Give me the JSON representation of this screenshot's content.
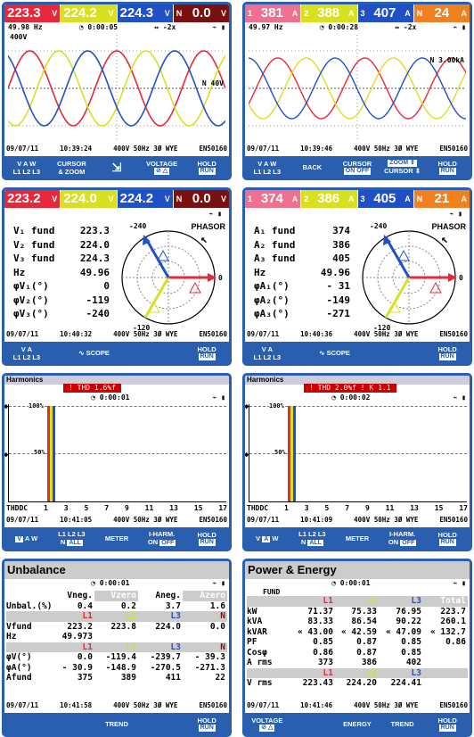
{
  "colors": {
    "l1": "#e8283a",
    "l2": "#d8e020",
    "l3": "#2050c8",
    "n": "#7a1010",
    "blue": "#2a5fb0",
    "pinkbadge": "#f07090",
    "green": "#1a8a1a"
  },
  "p1": {
    "badges": [
      {
        "value": "223.3",
        "unit": "V"
      },
      {
        "value": "224.2",
        "unit": "V"
      },
      {
        "value": "224.3",
        "unit": "V"
      },
      {
        "value": "0.0",
        "unit": "V"
      }
    ],
    "freq": "49.98 Hz",
    "time": "0:00:05",
    "zoom": "-2x",
    "scale_top": "400V",
    "marker": "N  40V",
    "date": "09/07/11",
    "clock": "10:39:24",
    "cfg": "400V  50Hz 3Ø WYE",
    "std": "EN50160",
    "fkeys": [
      "V  A  W\nL1 L2 L3",
      "CURSOR\n& ZOOM",
      "⇄",
      "VOLTAGE",
      "HOLD\nRUN"
    ],
    "tabs": {
      "voltage": "⊘  △",
      "hold": "RUN"
    }
  },
  "p2": {
    "badges": [
      {
        "value": "381",
        "unit": "A"
      },
      {
        "value": "388",
        "unit": "A"
      },
      {
        "value": "407",
        "unit": "A"
      },
      {
        "value": "24",
        "unit": "A"
      }
    ],
    "freq": "49.97 Hz",
    "time": "0:00:28",
    "zoom": "-2x",
    "marker": "N  3.00kA",
    "date": "09/07/11",
    "clock": "10:39:46",
    "cfg": "400V  50Hz 3Ø WYE",
    "std": "EN50160",
    "fkeys": [
      "V  A  W\nL1 L2 L3",
      "BACK",
      "CURSOR\nON OFF",
      "ZOOM ⇕\nCURSOR ⇕",
      "HOLD\nRUN"
    ]
  },
  "p3": {
    "badges": [
      {
        "value": "223.2",
        "unit": "V"
      },
      {
        "value": "224.0",
        "unit": "V"
      },
      {
        "value": "224.2",
        "unit": "V"
      },
      {
        "value": "0.0",
        "unit": "V"
      }
    ],
    "mode": "PHASOR",
    "rows": [
      {
        "label": "V₁ fund",
        "value": "223.3"
      },
      {
        "label": "V₂ fund",
        "value": "224.0"
      },
      {
        "label": "V₃ fund",
        "value": "224.3"
      },
      {
        "label": "Hz",
        "value": "49.96"
      },
      {
        "label": "φV₁(°)",
        "value": "0"
      },
      {
        "label": "φV₂(°)",
        "value": "-119"
      },
      {
        "label": "φV₃(°)",
        "value": "-240"
      }
    ],
    "axis": {
      "top": "-240",
      "right": "0",
      "bottom": "-120"
    },
    "date": "09/07/11",
    "clock": "10:40:32",
    "cfg": "400V  50Hz 3Ø WYE",
    "std": "EN50160",
    "fkeys": [
      "V  A\nL1 L2 L3",
      "SCOPE",
      "HOLD\nRUN"
    ]
  },
  "p4": {
    "badges": [
      {
        "value": "374",
        "unit": "A"
      },
      {
        "value": "386",
        "unit": "A"
      },
      {
        "value": "405",
        "unit": "A"
      },
      {
        "value": "21",
        "unit": "A"
      }
    ],
    "mode": "PHASOR",
    "rows": [
      {
        "label": "A₁ fund",
        "value": "374"
      },
      {
        "label": "A₂ fund",
        "value": "386"
      },
      {
        "label": "A₃ fund",
        "value": "405"
      },
      {
        "label": "Hz",
        "value": "49.96"
      },
      {
        "label": "φA₁(°)",
        "value": "- 31"
      },
      {
        "label": "φA₂(°)",
        "value": "-149"
      },
      {
        "label": "φA₃(°)",
        "value": "-271"
      }
    ],
    "axis": {
      "top": "-240",
      "right": "0",
      "bottom": "-120"
    },
    "date": "09/07/11",
    "clock": "10:40:36",
    "cfg": "400V  50Hz 3Ø WYE",
    "std": "EN50160",
    "fkeys": [
      "V  A\nL1 L2 L3",
      "SCOPE",
      "HOLD\nRUN"
    ]
  },
  "p5": {
    "title": "Harmonics",
    "thd": "! THD  1.6%f",
    "time": "0:00:01",
    "y100": "100%",
    "y50": "50%",
    "xlabels": [
      "THDDC",
      "1",
      "3",
      "5",
      "7",
      "9",
      "11",
      "13",
      "15",
      "17"
    ],
    "date": "09/07/11",
    "clock": "10:41:05",
    "cfg": "400V  50Hz 3Ø WYE",
    "std": "EN50160",
    "fkeys": [
      "V  A  W",
      "L1 L2 L3\nN  ALL",
      "METER",
      "I-HARM.\nON  OFF",
      "HOLD\nRUN"
    ]
  },
  "p6": {
    "title": "Harmonics",
    "thd": "! THD  2.0%f ! K     1.1",
    "time": "0:00:02",
    "y100": "100%",
    "y50": "50%",
    "xlabels": [
      "THDDC",
      "1",
      "3",
      "5",
      "7",
      "9",
      "11",
      "13",
      "15",
      "17"
    ],
    "date": "09/07/11",
    "clock": "10:41:09",
    "cfg": "400V  50Hz 3Ø WYE",
    "std": "EN50160",
    "fkeys": [
      "V  A  W",
      "L1 L2 L3\nN  ALL",
      "METER",
      "I-HARM.\nON  OFF",
      "HOLD\nRUN"
    ]
  },
  "p7": {
    "title": "Unbalance",
    "time": "0:00:01",
    "hdr": [
      "",
      "Vneg.",
      "Vzero",
      "Aneg.",
      "Azero"
    ],
    "unbal": [
      "Unbal.(%)",
      "0.4",
      "0.2",
      "3.7",
      "1.6"
    ],
    "h2": [
      "",
      "L1",
      "L2",
      "L3",
      "N"
    ],
    "vfund": [
      "Vfund",
      "223.2",
      "223.8",
      "224.0",
      "0.0"
    ],
    "hz": [
      "Hz",
      "49.973",
      "",
      "",
      ""
    ],
    "h3": [
      "",
      "L1",
      "L2",
      "L3",
      "N"
    ],
    "phv": [
      "φV(°)",
      "0.0",
      "-119.4",
      "-239.7",
      "- 39.3"
    ],
    "pha": [
      "φA(°)",
      "- 30.9",
      "-148.9",
      "-270.5",
      "-271.3"
    ],
    "afund": [
      "Afund",
      "375",
      "389",
      "411",
      "22"
    ],
    "date": "09/07/11",
    "clock": "10:41:58",
    "cfg": "400V  50Hz 3Ø WYE",
    "std": "EN50160",
    "fkeys": [
      "",
      "",
      "TREND",
      "",
      "HOLD\nRUN"
    ]
  },
  "p8": {
    "title": "Power & Energy",
    "time": "0:00:01",
    "hdr": [
      "",
      "L1",
      "L2",
      "L3",
      "Total"
    ],
    "fund": "FUND",
    "rows": [
      [
        "kW",
        "71.37",
        "75.33",
        "76.95",
        "223.7"
      ],
      [
        "kVA",
        "83.33",
        "86.54",
        "90.22",
        "260.1"
      ],
      [
        "kVAR",
        "« 43.00",
        "« 42.59",
        "« 47.09",
        "« 132.7"
      ],
      [
        "PF",
        "0.85",
        "0.87",
        "0.85",
        "0.86"
      ],
      [
        "Cosφ",
        "0.86",
        "0.87",
        "0.85",
        ""
      ],
      [
        "A rms",
        "373",
        "386",
        "402",
        ""
      ]
    ],
    "h2": [
      "",
      "L1",
      "L2",
      "L3",
      ""
    ],
    "vrms": [
      "V rms",
      "223.43",
      "224.20",
      "224.41",
      ""
    ],
    "date": "09/07/11",
    "clock": "10:41:46",
    "cfg": "400V  50Hz 3Ø WYE",
    "std": "EN50160",
    "fkeys": [
      "VOLTAGE\n⊘  △",
      "",
      "ENERGY",
      "TREND",
      "HOLD\nRUN"
    ]
  }
}
